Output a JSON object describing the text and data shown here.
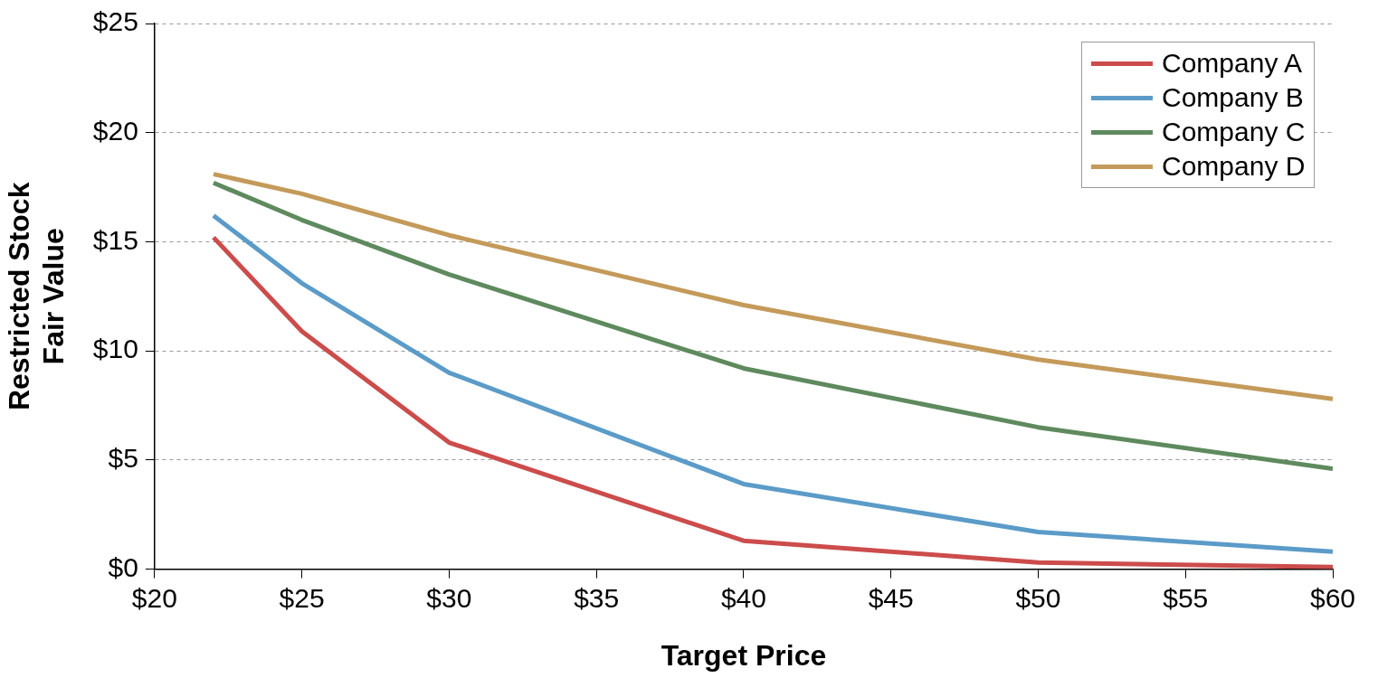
{
  "chart_data": {
    "type": "line",
    "xlabel": "Target Price",
    "ylabel": "Restricted Stock\nFair Value",
    "x": [
      22,
      25,
      30,
      40,
      50,
      60
    ],
    "series": [
      {
        "name": "Company A",
        "color": "#cc4c4c",
        "values": [
          15.2,
          10.9,
          5.8,
          1.3,
          0.3,
          0.1
        ]
      },
      {
        "name": "Company B",
        "color": "#5b9bc8",
        "values": [
          16.2,
          13.1,
          9.0,
          3.9,
          1.7,
          0.8
        ]
      },
      {
        "name": "Company C",
        "color": "#5e8a5e",
        "values": [
          17.7,
          16.0,
          13.5,
          9.2,
          6.5,
          4.6
        ]
      },
      {
        "name": "Company D",
        "color": "#c49a5a",
        "values": [
          18.1,
          17.2,
          15.3,
          12.1,
          9.6,
          7.8
        ]
      }
    ],
    "xlim": [
      20,
      60
    ],
    "xticks": [
      {
        "value": 20,
        "label": "$20"
      },
      {
        "value": 25,
        "label": "$25"
      },
      {
        "value": 30,
        "label": "$30"
      },
      {
        "value": 35,
        "label": "$35"
      },
      {
        "value": 40,
        "label": "$40"
      },
      {
        "value": 45,
        "label": "$45"
      },
      {
        "value": 50,
        "label": "$50"
      },
      {
        "value": 55,
        "label": "$55"
      },
      {
        "value": 60,
        "label": "$60"
      }
    ],
    "ylim": [
      0,
      25
    ],
    "yticks": [
      {
        "value": 0,
        "label": "$0"
      },
      {
        "value": 5,
        "label": "$5"
      },
      {
        "value": 10,
        "label": "$10"
      },
      {
        "value": 15,
        "label": "$15"
      },
      {
        "value": 20,
        "label": "$20"
      },
      {
        "value": 25,
        "label": "$25"
      }
    ],
    "grid": "y",
    "legend": "top right",
    "marker": "none",
    "line_style": "solid"
  }
}
